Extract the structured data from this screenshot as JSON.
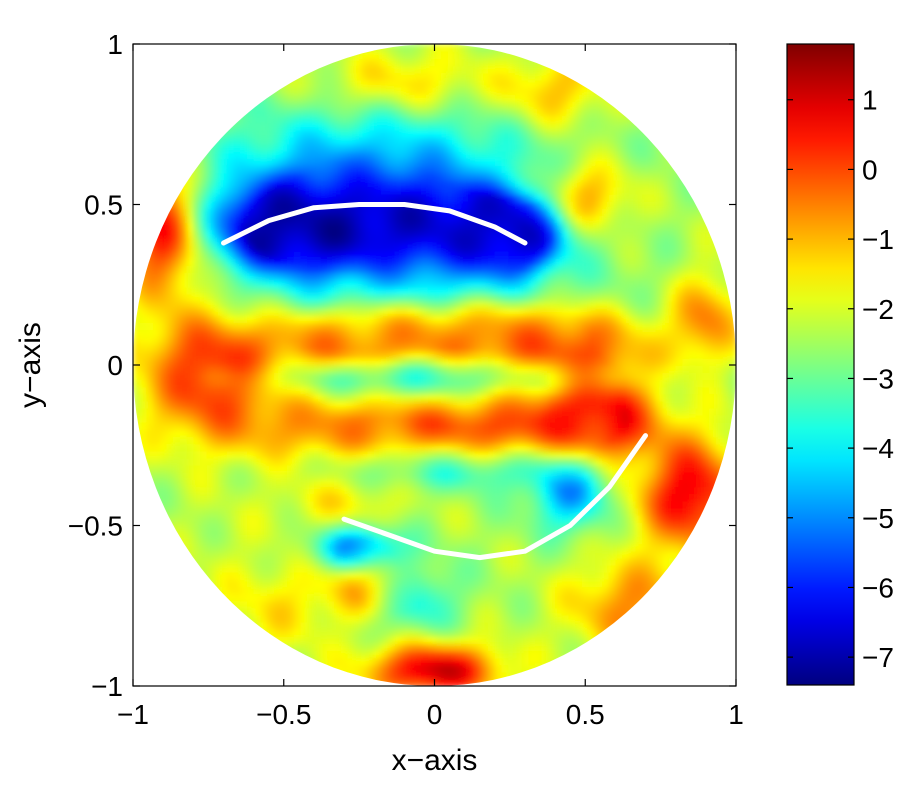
{
  "chart_data": {
    "type": "heatmap",
    "title": "",
    "xlabel": "x−axis",
    "ylabel": "y−axis",
    "xlim": [
      -1,
      1
    ],
    "ylim": [
      -1,
      1
    ],
    "xticks": [
      -1,
      -0.5,
      0,
      0.5,
      1
    ],
    "yticks": [
      -1,
      -0.5,
      0,
      0.5,
      1
    ],
    "xtick_labels": [
      "−1",
      "−0.5",
      "0",
      "0.5",
      "1"
    ],
    "ytick_labels": [
      "−1",
      "−0.5",
      "0",
      "0.5",
      "1"
    ],
    "domain": "unit disk",
    "colormap": "jet",
    "colorbar": {
      "range": [
        -7.4,
        1.8
      ],
      "ticks": [
        1,
        0,
        -1,
        -2,
        -3,
        -4,
        -5,
        -6,
        -7
      ],
      "tick_labels": [
        "1",
        "0",
        "−1",
        "−2",
        "−3",
        "−4",
        "−5",
        "−6",
        "−7"
      ]
    },
    "grid": false,
    "field_blobs": [
      {
        "x": -0.22,
        "y": 0.46,
        "sx": 0.3,
        "sy": 0.1,
        "v": -6.8
      },
      {
        "x": 0.1,
        "y": 0.42,
        "sx": 0.2,
        "sy": 0.08,
        "v": -5.8
      },
      {
        "x": -0.48,
        "y": 0.42,
        "sx": 0.16,
        "sy": 0.09,
        "v": -6.5
      },
      {
        "x": 0.25,
        "y": 0.4,
        "sx": 0.1,
        "sy": 0.07,
        "v": -6.8
      },
      {
        "x": -0.2,
        "y": 0.66,
        "sx": 0.4,
        "sy": 0.12,
        "v": -4.2
      },
      {
        "x": -0.05,
        "y": 0.22,
        "sx": 0.45,
        "sy": 0.1,
        "v": -3.8
      },
      {
        "x": -0.1,
        "y": 0.88,
        "sx": 0.2,
        "sy": 0.07,
        "v": -1.2
      },
      {
        "x": 0.4,
        "y": 0.85,
        "sx": 0.12,
        "sy": 0.08,
        "v": -1.0
      },
      {
        "x": 0.5,
        "y": 0.52,
        "sx": 0.1,
        "sy": 0.08,
        "v": -0.4
      },
      {
        "x": -0.9,
        "y": 0.42,
        "sx": 0.09,
        "sy": 0.14,
        "v": 0.8
      },
      {
        "x": -0.75,
        "y": -0.02,
        "sx": 0.16,
        "sy": 0.14,
        "v": 0.4
      },
      {
        "x": -0.3,
        "y": 0.08,
        "sx": 0.2,
        "sy": 0.07,
        "v": -0.3
      },
      {
        "x": 0.05,
        "y": 0.12,
        "sx": 0.25,
        "sy": 0.05,
        "v": 0.2
      },
      {
        "x": 0.4,
        "y": 0.05,
        "sx": 0.22,
        "sy": 0.1,
        "v": 0.0
      },
      {
        "x": 0.2,
        "y": -0.2,
        "sx": 0.3,
        "sy": 0.07,
        "v": -0.2
      },
      {
        "x": 0.55,
        "y": -0.15,
        "sx": 0.12,
        "sy": 0.1,
        "v": 0.3
      },
      {
        "x": -0.35,
        "y": -0.2,
        "sx": 0.25,
        "sy": 0.08,
        "v": -1.0
      },
      {
        "x": 0.0,
        "y": -0.04,
        "sx": 0.4,
        "sy": 0.04,
        "v": -4.0
      },
      {
        "x": 0.05,
        "y": -0.32,
        "sx": 0.3,
        "sy": 0.05,
        "v": -3.8
      },
      {
        "x": -0.3,
        "y": -0.42,
        "sx": 0.15,
        "sy": 0.07,
        "v": -1.5
      },
      {
        "x": -0.25,
        "y": -0.57,
        "sx": 0.1,
        "sy": 0.05,
        "v": -5.5
      },
      {
        "x": -0.08,
        "y": -0.72,
        "sx": 0.1,
        "sy": 0.08,
        "v": -4.2
      },
      {
        "x": 0.45,
        "y": -0.4,
        "sx": 0.09,
        "sy": 0.08,
        "v": -4.8
      },
      {
        "x": -0.2,
        "y": -0.68,
        "sx": 0.1,
        "sy": 0.07,
        "v": -0.5
      },
      {
        "x": 0.85,
        "y": -0.4,
        "sx": 0.12,
        "sy": 0.12,
        "v": 0.9
      },
      {
        "x": 0.65,
        "y": -0.75,
        "sx": 0.15,
        "sy": 0.1,
        "v": -0.6
      },
      {
        "x": 0.0,
        "y": -0.95,
        "sx": 0.15,
        "sy": 0.06,
        "v": 1.2
      },
      {
        "x": -0.5,
        "y": -0.75,
        "sx": 0.15,
        "sy": 0.1,
        "v": -1.5
      },
      {
        "x": 0.9,
        "y": 0.15,
        "sx": 0.08,
        "sy": 0.1,
        "v": -0.5
      },
      {
        "x": -0.7,
        "y": -0.55,
        "sx": 0.12,
        "sy": 0.12,
        "v": -2.2
      }
    ],
    "field_background": -2.4,
    "overlay_curves": [
      {
        "color": "#ffffff",
        "x": [
          -0.7,
          -0.55,
          -0.4,
          -0.25,
          -0.1,
          0.05,
          0.2,
          0.3
        ],
        "y": [
          0.38,
          0.45,
          0.49,
          0.5,
          0.5,
          0.48,
          0.43,
          0.38
        ]
      },
      {
        "color": "#ffffff",
        "x": [
          -0.3,
          -0.15,
          0.0,
          0.15,
          0.3,
          0.45,
          0.58,
          0.7
        ],
        "y": [
          -0.48,
          -0.53,
          -0.58,
          -0.6,
          -0.58,
          -0.5,
          -0.38,
          -0.22
        ]
      }
    ]
  }
}
